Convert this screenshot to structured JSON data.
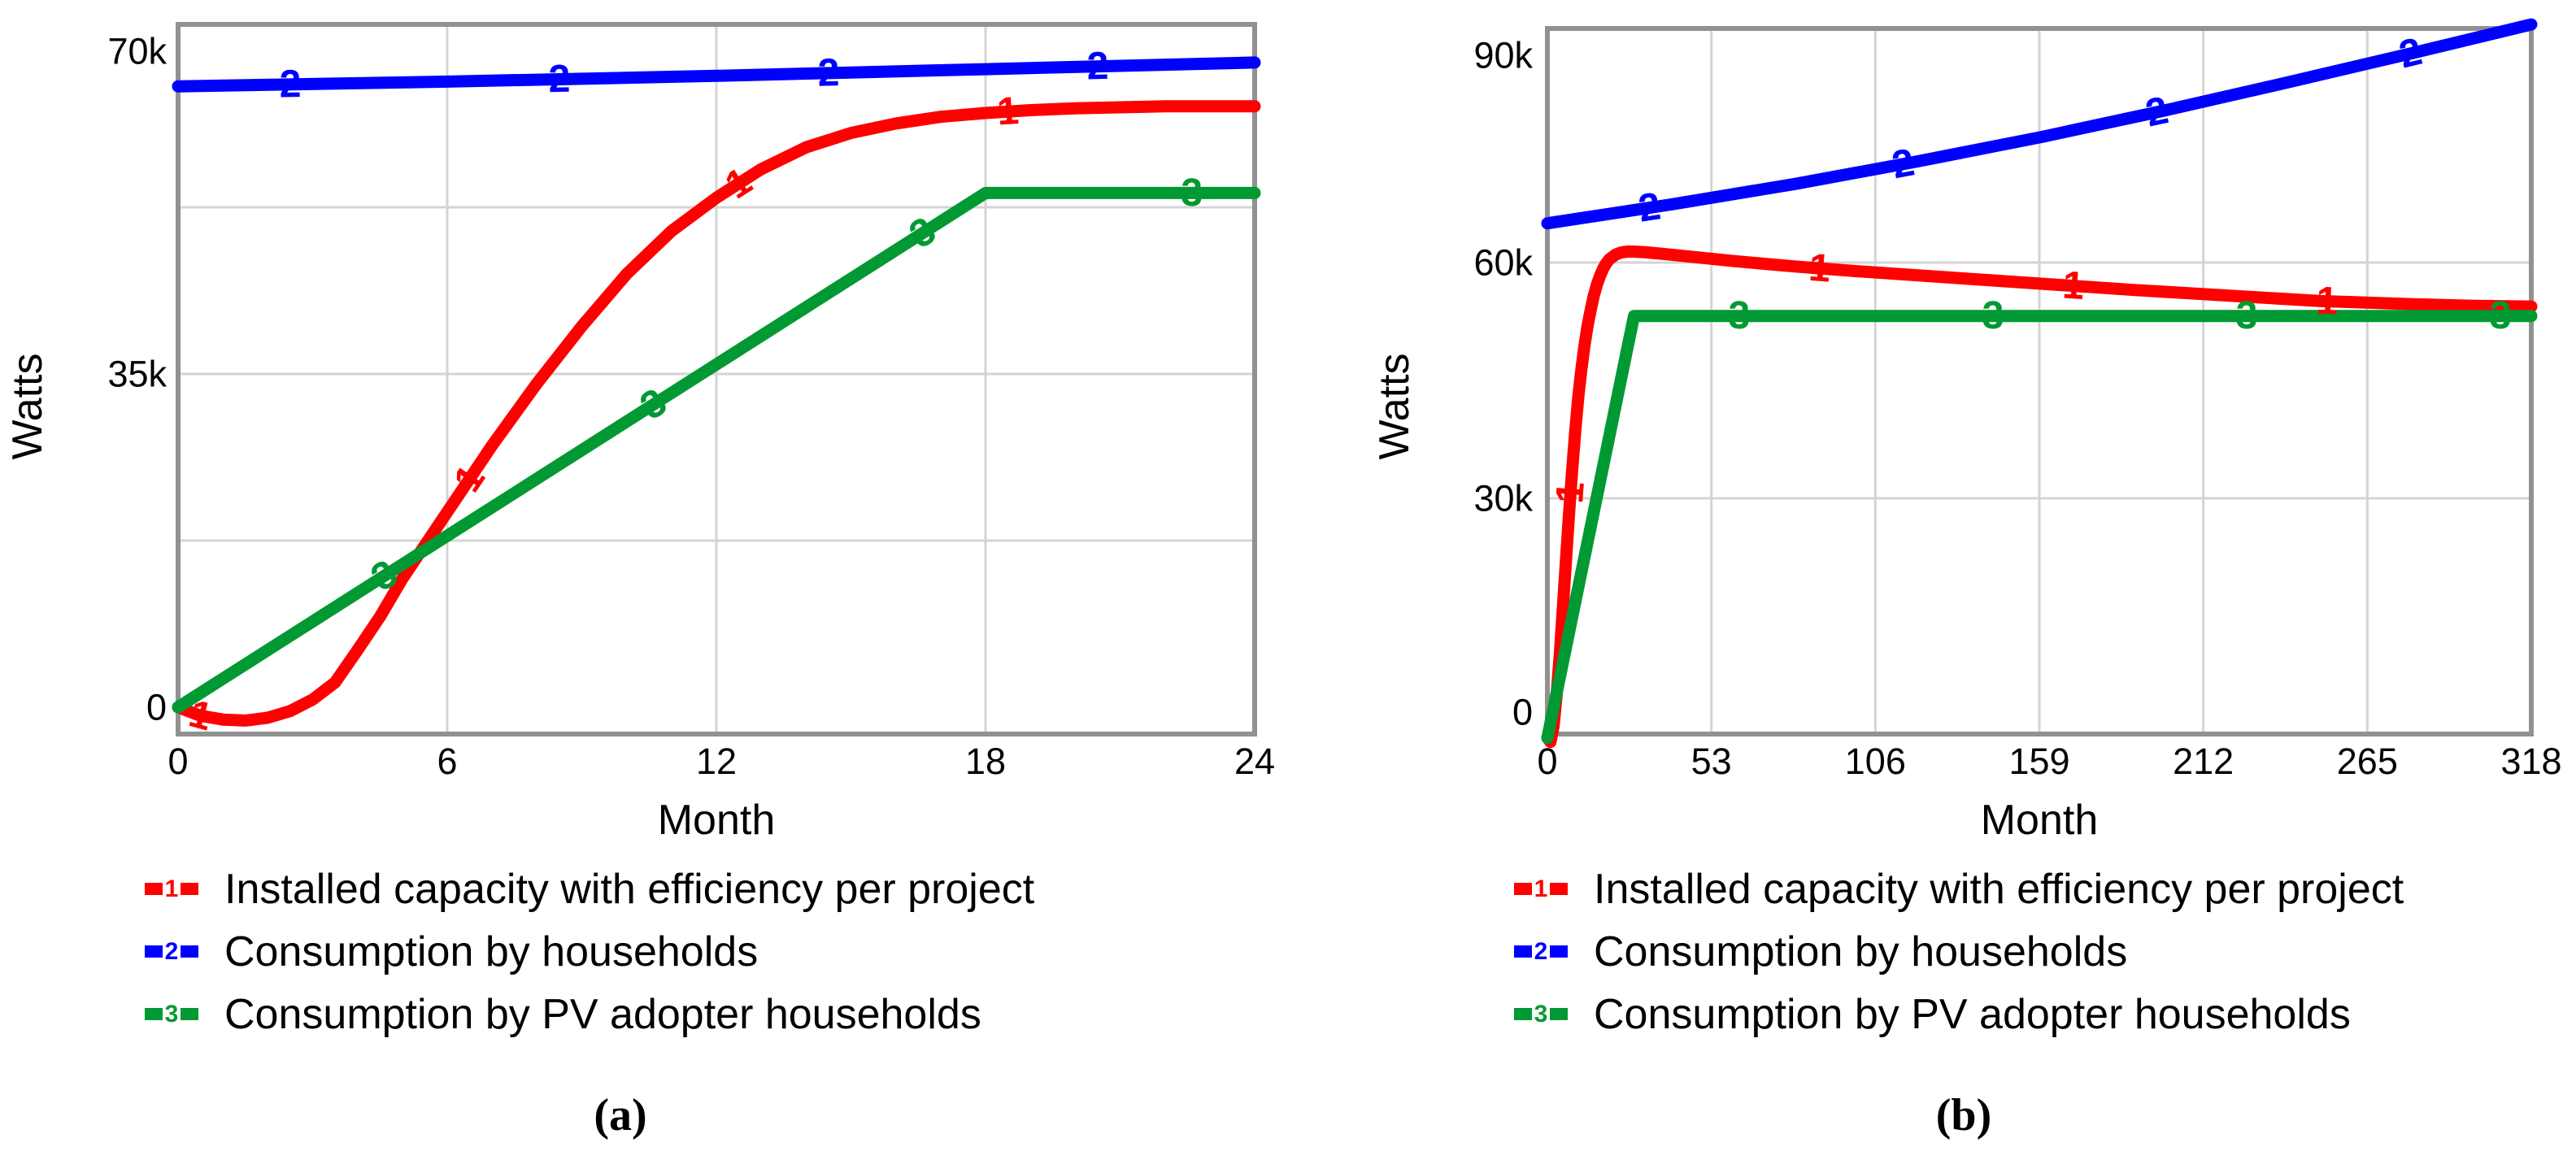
{
  "figure": {
    "caption_a": "(a)",
    "caption_b": "(b)"
  },
  "legend": {
    "items": [
      {
        "digit": "1",
        "color": "#ff0000",
        "label": "Installed capacity with efficiency per project"
      },
      {
        "digit": "2",
        "color": "#0000ff",
        "label": "Consumption by households"
      },
      {
        "digit": "3",
        "color": "#009933",
        "label": "Consumption by PV adopter households"
      }
    ]
  },
  "colors": {
    "red": "#ff0000",
    "blue": "#0000ff",
    "green": "#009933",
    "frame": "#919191",
    "grid": "#d4d4d4",
    "text": "#000000"
  },
  "chart_data": [
    {
      "id": "a",
      "type": "line",
      "xlabel": "Month",
      "ylabel": "Watts",
      "x_range": [
        0,
        24
      ],
      "y_range_k": [
        0,
        70
      ],
      "x_ticks": [
        {
          "label": "0",
          "value": 0
        },
        {
          "label": "6",
          "value": 6
        },
        {
          "label": "12",
          "value": 12
        },
        {
          "label": "18",
          "value": 18
        },
        {
          "label": "24",
          "value": 24
        }
      ],
      "y_ticks": [
        {
          "label": "0",
          "value": 0
        },
        {
          "label": "35k",
          "value": 35
        },
        {
          "label": "70k",
          "value": 70
        }
      ],
      "grid_x": [
        6,
        12,
        18
      ],
      "grid_y_k": [
        17.5,
        35,
        52.5
      ],
      "legend_position": "below",
      "series": [
        {
          "name": "Installed capacity with efficiency per project",
          "digit": "1",
          "color": "#ff0000",
          "marker_x": [
            0.5,
            6.5,
            12.5,
            18.5
          ],
          "points": [
            [
              0,
              0
            ],
            [
              0.5,
              -0.9
            ],
            [
              1,
              -1.3
            ],
            [
              1.5,
              -1.4
            ],
            [
              2,
              -1.1
            ],
            [
              2.5,
              -0.4
            ],
            [
              3,
              0.8
            ],
            [
              3.5,
              2.6
            ],
            [
              4,
              6
            ],
            [
              4.5,
              9.5
            ],
            [
              5,
              13.5
            ],
            [
              5.5,
              17
            ],
            [
              6,
              20.5
            ],
            [
              6.5,
              24
            ],
            [
              7,
              27.5
            ],
            [
              8,
              34
            ],
            [
              9,
              40
            ],
            [
              10,
              45.5
            ],
            [
              11,
              50
            ],
            [
              12,
              53.5
            ],
            [
              13,
              56.5
            ],
            [
              14,
              58.8
            ],
            [
              15,
              60.3
            ],
            [
              16,
              61.3
            ],
            [
              17,
              62
            ],
            [
              18,
              62.4
            ],
            [
              19,
              62.7
            ],
            [
              20,
              62.9
            ],
            [
              21,
              63
            ],
            [
              22,
              63.1
            ],
            [
              23,
              63.1
            ],
            [
              24,
              63.1
            ]
          ]
        },
        {
          "name": "Consumption by households",
          "digit": "2",
          "color": "#0000ff",
          "marker_x": [
            2.5,
            8.5,
            14.5,
            20.5
          ],
          "points": [
            [
              0,
              65.2
            ],
            [
              6,
              65.7
            ],
            [
              12,
              66.3
            ],
            [
              18,
              67
            ],
            [
              24,
              67.7
            ]
          ]
        },
        {
          "name": "Consumption by PV adopter households",
          "digit": "3",
          "color": "#009933",
          "marker_x": [
            4.6,
            10.6,
            16.6,
            22.6
          ],
          "points": [
            [
              0,
              0
            ],
            [
              18,
              54
            ],
            [
              24,
              54
            ]
          ]
        }
      ]
    },
    {
      "id": "b",
      "type": "line",
      "xlabel": "Month",
      "ylabel": "Watts",
      "x_range": [
        0,
        318
      ],
      "y_range_k": [
        0,
        90
      ],
      "x_ticks": [
        {
          "label": "0",
          "value": 0
        },
        {
          "label": "53",
          "value": 53
        },
        {
          "label": "106",
          "value": 106
        },
        {
          "label": "159",
          "value": 159
        },
        {
          "label": "212",
          "value": 212
        },
        {
          "label": "265",
          "value": 265
        },
        {
          "label": "318",
          "value": 318
        }
      ],
      "y_ticks": [
        {
          "label": "0",
          "value": 0
        },
        {
          "label": "30k",
          "value": 30
        },
        {
          "label": "60k",
          "value": 60
        },
        {
          "label": "90k",
          "value": 90
        }
      ],
      "grid_x": [
        53,
        106,
        159,
        212,
        265
      ],
      "grid_y_k": [
        30,
        60
      ],
      "legend_position": "below",
      "series": [
        {
          "name": "Installed capacity with efficiency per project",
          "digit": "1",
          "color": "#ff0000",
          "marker_x": [
            7.5,
            88,
            170,
            252
          ],
          "points": [
            [
              0,
              -0.5
            ],
            [
              1,
              -1
            ],
            [
              2,
              1
            ],
            [
              3,
              5
            ],
            [
              4,
              10
            ],
            [
              5,
              16
            ],
            [
              6,
              22
            ],
            [
              7,
              28
            ],
            [
              8,
              33.5
            ],
            [
              9,
              38.5
            ],
            [
              10,
              43
            ],
            [
              11,
              46.5
            ],
            [
              12,
              49.5
            ],
            [
              13,
              52
            ],
            [
              14,
              54
            ],
            [
              15,
              55.8
            ],
            [
              16,
              57.2
            ],
            [
              17,
              58.3
            ],
            [
              18,
              59.2
            ],
            [
              19,
              59.9
            ],
            [
              20,
              60.4
            ],
            [
              22,
              61
            ],
            [
              24,
              61.3
            ],
            [
              26,
              61.4
            ],
            [
              28,
              61.4
            ],
            [
              32,
              61.3
            ],
            [
              40,
              61
            ],
            [
              60,
              60.2
            ],
            [
              80,
              59.5
            ],
            [
              100,
              58.9
            ],
            [
              130,
              58.1
            ],
            [
              160,
              57.3
            ],
            [
              190,
              56.5
            ],
            [
              220,
              55.8
            ],
            [
              250,
              55.1
            ],
            [
              280,
              54.7
            ],
            [
              300,
              54.5
            ],
            [
              318,
              54.4
            ]
          ]
        },
        {
          "name": "Consumption by households",
          "digit": "2",
          "color": "#0000ff",
          "marker_x": [
            33,
            115,
            197,
            279
          ],
          "points": [
            [
              0,
              65
            ],
            [
              40,
              67.4
            ],
            [
              80,
              70
            ],
            [
              120,
              72.9
            ],
            [
              160,
              76
            ],
            [
              200,
              79.4
            ],
            [
              240,
              83
            ],
            [
              280,
              86.7
            ],
            [
              318,
              90.3
            ]
          ]
        },
        {
          "name": "Consumption by PV adopter households",
          "digit": "3",
          "color": "#009933",
          "marker_x": [
            62,
            144,
            226,
            308
          ],
          "points": [
            [
              0,
              -0.5
            ],
            [
              28,
              53.2
            ],
            [
              318,
              53.2
            ]
          ]
        }
      ]
    }
  ]
}
